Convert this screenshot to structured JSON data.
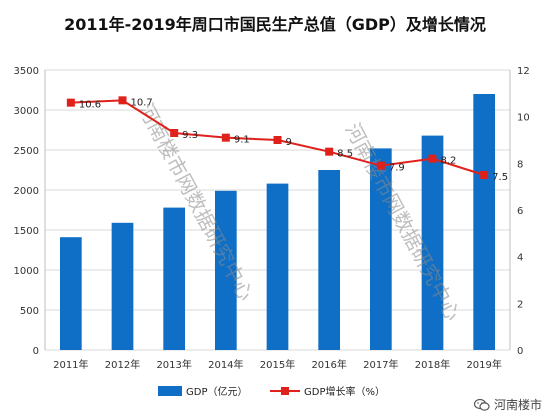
{
  "chart_data": {
    "type": "bar",
    "title": "2011年-2019年周口市国民生产总值（GDP）及增长情况",
    "categories": [
      "2011年",
      "2012年",
      "2013年",
      "2014年",
      "2015年",
      "2016年",
      "2017年",
      "2018年",
      "2019年"
    ],
    "series": [
      {
        "name": "GDP（亿元）",
        "type": "bar",
        "axis": "left",
        "values": [
          1410,
          1590,
          1780,
          1990,
          2080,
          2250,
          2520,
          2680,
          3200
        ],
        "color": "#0f6fc6"
      },
      {
        "name": "GDP增长率（%）",
        "type": "line",
        "axis": "right",
        "values": [
          10.6,
          10.7,
          9.3,
          9.1,
          9,
          8.5,
          7.9,
          8.2,
          7.5
        ],
        "data_labels": [
          "10.6",
          "10.7",
          "9.3",
          "9.1",
          "9",
          "8.5",
          "7.9",
          "8.2",
          "7.5"
        ],
        "color": "#e0201b"
      }
    ],
    "y_left": {
      "min": 0,
      "max": 3500,
      "ticks": [
        "0",
        "500",
        "1000",
        "1500",
        "2000",
        "2500",
        "3000",
        "3500"
      ]
    },
    "y_right": {
      "min": 0,
      "max": 12,
      "ticks": [
        "0",
        "2",
        "4",
        "6",
        "8",
        "10",
        "12"
      ]
    },
    "grid": true,
    "legend": "bottom"
  },
  "watermarks": [
    "河南楼市网数据研究中心",
    "河南楼市网数据研究中心"
  ],
  "brand": {
    "name": "河南楼市",
    "icon": "wechat-icon"
  }
}
